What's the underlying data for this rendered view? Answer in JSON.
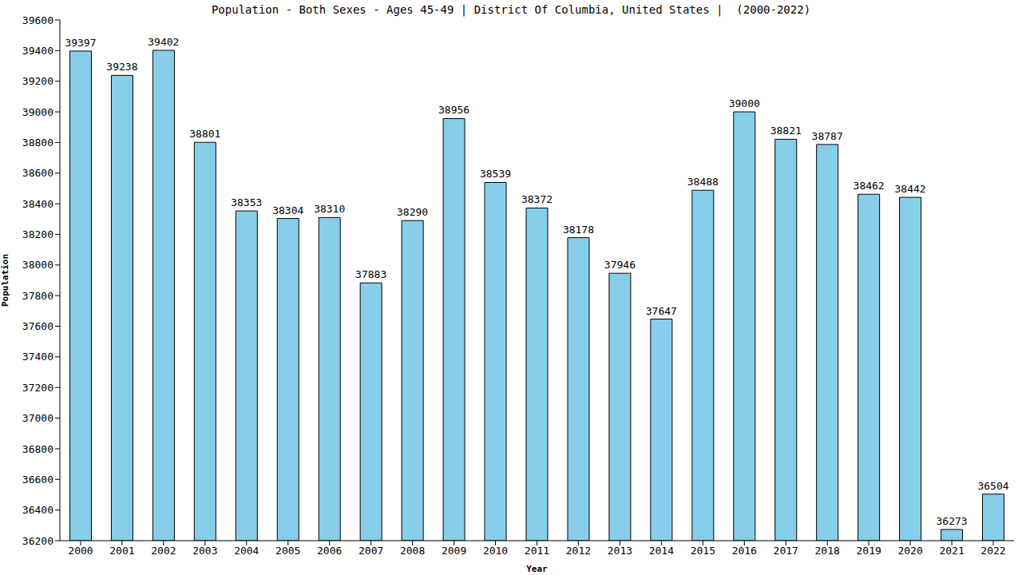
{
  "chart_data": {
    "type": "bar",
    "title": "Population - Both Sexes - Ages 45-49 | District Of Columbia, United States |  (2000-2022)",
    "x_label": "Year",
    "y_label": "Population",
    "categories": [
      "2000",
      "2001",
      "2002",
      "2003",
      "2004",
      "2005",
      "2006",
      "2007",
      "2008",
      "2009",
      "2010",
      "2011",
      "2012",
      "2013",
      "2014",
      "2015",
      "2016",
      "2017",
      "2018",
      "2019",
      "2020",
      "2021",
      "2022"
    ],
    "values": [
      39397,
      39238,
      39402,
      38801,
      38353,
      38304,
      38310,
      37883,
      38290,
      38956,
      38539,
      38372,
      38178,
      37946,
      37647,
      38488,
      39000,
      38821,
      38787,
      38462,
      38442,
      36273,
      36504
    ],
    "color": "#87ceeb",
    "ylim": [
      36200,
      39600
    ],
    "yticks": [
      36200,
      36400,
      36600,
      36800,
      37000,
      37200,
      37400,
      37600,
      37800,
      38000,
      38200,
      38400,
      38600,
      38800,
      39000,
      39200,
      39400,
      39600
    ],
    "grid": false,
    "data_labels": true
  }
}
